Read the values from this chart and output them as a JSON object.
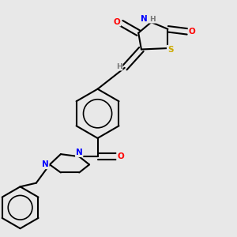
{
  "bg_color": "#e8e8e8",
  "atom_colors": {
    "O": "#ff0000",
    "N": "#0000ff",
    "S": "#ccaa00",
    "H": "#777777",
    "C": "#000000"
  },
  "bond_color": "#000000",
  "bond_width": 1.5
}
